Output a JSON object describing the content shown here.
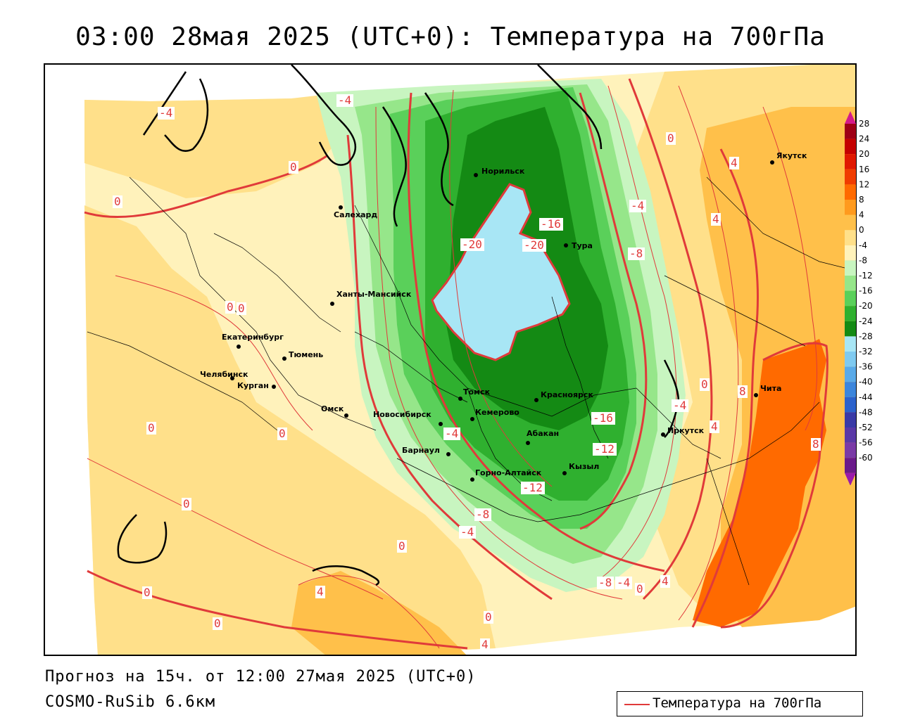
{
  "title": "03:00 28мая 2025 (UTC+0): Температура на 700гПа",
  "footer": {
    "forecast": "Прогноз на 15ч. от 12:00 27мая 2025 (UTC+0)",
    "model": "COSMO-RuSib 6.6км"
  },
  "legend": {
    "label": "Температура на 700гПа",
    "color": "#e03a3a"
  },
  "colorbar": {
    "ticks": [
      "28",
      "24",
      "20",
      "16",
      "12",
      "8",
      "4",
      "0",
      "-4",
      "-8",
      "-12",
      "-16",
      "-20",
      "-24",
      "-28",
      "-32",
      "-36",
      "-40",
      "-44",
      "-48",
      "-52",
      "-56",
      "-60"
    ],
    "colors": [
      "#9e0016",
      "#c40000",
      "#e01800",
      "#f03c00",
      "#ff6a00",
      "#ff9a1e",
      "#ffc04a",
      "#ffe08a",
      "#fff2bb",
      "#c8f5c0",
      "#96e68a",
      "#5ad05a",
      "#2fb02f",
      "#148a14",
      "#a8e6f5",
      "#7fcaf0",
      "#5aaae8",
      "#3c86dc",
      "#2c62cc",
      "#3a3aa6",
      "#5a38a6",
      "#7a3aa6",
      "#6a1a8a"
    ],
    "top_arrow_color": "#d41a8a",
    "bottom_arrow_color": "#9a1aaa"
  },
  "cities": [
    {
      "name": "Норильск"
    },
    {
      "name": "Салехард"
    },
    {
      "name": "Тура"
    },
    {
      "name": "Ханты-Мансийск"
    },
    {
      "name": "Якутск"
    },
    {
      "name": "Екатеринбург"
    },
    {
      "name": "Тюмень"
    },
    {
      "name": "Челябинск"
    },
    {
      "name": "Курган"
    },
    {
      "name": "Омск"
    },
    {
      "name": "Новосибирск"
    },
    {
      "name": "Томск"
    },
    {
      "name": "Кемерово"
    },
    {
      "name": "Красноярск"
    },
    {
      "name": "Абакан"
    },
    {
      "name": "Барнаул"
    },
    {
      "name": "Горно-Алтайск"
    },
    {
      "name": "Кызыл"
    },
    {
      "name": "Иркутск"
    },
    {
      "name": "Чита"
    }
  ],
  "contour_labels": [
    "-4",
    "-4",
    "0",
    "0",
    "0",
    "0",
    "0",
    "0",
    "0",
    "0",
    "0",
    "-20",
    "-20",
    "-16",
    "-4",
    "-8",
    "0",
    "4",
    "4",
    "-16",
    "-12",
    "-4",
    "0",
    "4",
    "8",
    "8",
    "-4",
    "-4",
    "-8",
    "-12",
    "-8",
    "-4",
    "0",
    "4",
    "0",
    "4",
    "0",
    "4"
  ]
}
